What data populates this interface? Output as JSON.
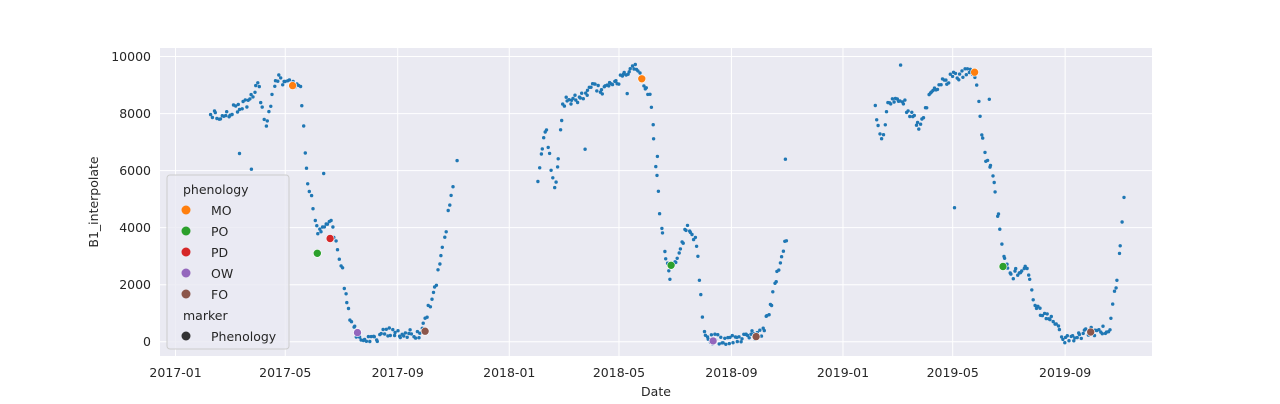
{
  "chart_data": {
    "type": "scatter",
    "xlabel": "Date",
    "ylabel": "B1_interpolate",
    "xlim": [
      "2016-12-15",
      "2019-12-05"
    ],
    "ylim": [
      -500,
      10300
    ],
    "x_ticks": [
      "2017-01-01",
      "2017-05-01",
      "2017-09-01",
      "2018-01-01",
      "2018-05-01",
      "2018-09-01",
      "2019-01-01",
      "2019-05-01",
      "2019-09-01"
    ],
    "x_tick_labels": [
      "2017-01",
      "2017-05",
      "2017-09",
      "2018-01",
      "2018-05",
      "2018-09",
      "2019-01",
      "2019-05",
      "2019-09"
    ],
    "y_ticks": [
      0,
      2000,
      4000,
      6000,
      8000,
      10000
    ],
    "y_tick_labels": [
      "0",
      "2000",
      "4000",
      "6000",
      "8000",
      "10000"
    ],
    "grid": true,
    "background": "#eaeaf2",
    "point_color": "#1f77b4",
    "series": [
      {
        "kind": "observations",
        "color": "#1f77b4",
        "segments": [
          {
            "anchors": [
              [
                "2017-02-08",
                8050
              ],
              [
                "2017-02-20",
                7850
              ],
              [
                "2017-03-05",
                8150
              ],
              [
                "2017-03-20",
                8350
              ],
              [
                "2017-04-01",
                9050
              ],
              [
                "2017-04-10",
                7500
              ],
              [
                "2017-04-20",
                9200
              ],
              [
                "2017-05-05",
                9150
              ],
              [
                "2017-05-18",
                8900
              ],
              [
                "2017-05-25",
                5800
              ],
              [
                "2017-06-05",
                3900
              ],
              [
                "2017-06-20",
                4200
              ],
              [
                "2017-07-01",
                2800
              ],
              [
                "2017-07-10",
                800
              ],
              [
                "2017-07-20",
                200
              ],
              [
                "2017-08-05",
                100
              ],
              [
                "2017-08-20",
                350
              ],
              [
                "2017-09-05",
                200
              ],
              [
                "2017-09-25",
                300
              ],
              [
                "2017-10-10",
                1600
              ],
              [
                "2017-10-20",
                3200
              ],
              [
                "2017-11-01",
                5600
              ]
            ],
            "count": 150,
            "spread": 350,
            "seed": 11
          },
          {
            "anchors": [
              [
                "2018-02-01",
                5600
              ],
              [
                "2018-02-10",
                7500
              ],
              [
                "2018-02-20",
                5200
              ],
              [
                "2018-03-01",
                8400
              ],
              [
                "2018-03-15",
                8500
              ],
              [
                "2018-04-01",
                8900
              ],
              [
                "2018-04-15",
                8800
              ],
              [
                "2018-05-01",
                9200
              ],
              [
                "2018-05-20",
                9600
              ],
              [
                "2018-06-05",
                8500
              ],
              [
                "2018-06-15",
                4300
              ],
              [
                "2018-06-25",
                2300
              ],
              [
                "2018-07-05",
                2900
              ],
              [
                "2018-07-15",
                4200
              ],
              [
                "2018-07-25",
                3500
              ],
              [
                "2018-08-01",
                500
              ],
              [
                "2018-08-10",
                100
              ],
              [
                "2018-08-25",
                80
              ],
              [
                "2018-09-10",
                120
              ],
              [
                "2018-09-20",
                180
              ],
              [
                "2018-10-05",
                300
              ],
              [
                "2018-10-15",
                1400
              ],
              [
                "2018-10-25",
                3000
              ],
              [
                "2018-11-01",
                3800
              ]
            ],
            "count": 170,
            "spread": 350,
            "seed": 23
          },
          {
            "anchors": [
              [
                "2019-02-05",
                8300
              ],
              [
                "2019-02-12",
                7000
              ],
              [
                "2019-02-20",
                8400
              ],
              [
                "2019-03-10",
                8300
              ],
              [
                "2019-03-25",
                7500
              ],
              [
                "2019-04-05",
                8500
              ],
              [
                "2019-04-20",
                9100
              ],
              [
                "2019-05-01",
                9300
              ],
              [
                "2019-05-15",
                9400
              ],
              [
                "2019-05-25",
                9500
              ],
              [
                "2019-06-05",
                6600
              ],
              [
                "2019-06-15",
                5700
              ],
              [
                "2019-06-25",
                3000
              ],
              [
                "2019-07-05",
                2300
              ],
              [
                "2019-07-20",
                2700
              ],
              [
                "2019-08-01",
                1100
              ],
              [
                "2019-08-20",
                700
              ],
              [
                "2019-09-01",
                100
              ],
              [
                "2019-09-20",
                300
              ],
              [
                "2019-10-05",
                350
              ],
              [
                "2019-10-20",
                500
              ],
              [
                "2019-10-28",
                2300
              ],
              [
                "2019-11-05",
                5100
              ]
            ],
            "count": 160,
            "spread": 350,
            "seed": 37
          }
        ],
        "outliers": [
          [
            "2017-03-12",
            6600
          ],
          [
            "2017-03-25",
            6050
          ],
          [
            "2017-06-12",
            5900
          ],
          [
            "2017-11-05",
            6350
          ],
          [
            "2018-03-25",
            6750
          ],
          [
            "2018-05-10",
            8700
          ],
          [
            "2018-06-12",
            6500
          ],
          [
            "2018-10-30",
            6400
          ],
          [
            "2019-03-05",
            9700
          ],
          [
            "2019-05-03",
            4700
          ],
          [
            "2019-06-10",
            8500
          ]
        ]
      },
      {
        "name": "MO",
        "color": "#ff7f0e",
        "points": [
          [
            "2017-05-09",
            8980
          ],
          [
            "2018-05-26",
            9220
          ],
          [
            "2019-05-25",
            9450
          ]
        ]
      },
      {
        "name": "PO",
        "color": "#2ca02c",
        "points": [
          [
            "2017-06-05",
            3100
          ],
          [
            "2018-06-27",
            2680
          ],
          [
            "2019-06-25",
            2640
          ]
        ]
      },
      {
        "name": "PD",
        "color": "#d62728",
        "points": [
          [
            "2017-06-19",
            3620
          ]
        ]
      },
      {
        "name": "OW",
        "color": "#9467bd",
        "points": [
          [
            "2017-07-19",
            320
          ],
          [
            "2018-08-12",
            30
          ]
        ]
      },
      {
        "name": "FO",
        "color": "#8c564b",
        "points": [
          [
            "2017-10-01",
            370
          ],
          [
            "2018-09-28",
            180
          ],
          [
            "2019-09-29",
            340
          ]
        ]
      }
    ],
    "legend": {
      "placement": "left",
      "hue_title": "phenology",
      "entries": [
        {
          "label": "MO",
          "color": "#ff7f0e"
        },
        {
          "label": "PO",
          "color": "#2ca02c"
        },
        {
          "label": "PD",
          "color": "#d62728"
        },
        {
          "label": "OW",
          "color": "#9467bd"
        },
        {
          "label": "FO",
          "color": "#8c564b"
        }
      ],
      "marker_title": "marker",
      "marker_entries": [
        {
          "label": "Phenology",
          "color": "#333333"
        }
      ]
    }
  }
}
